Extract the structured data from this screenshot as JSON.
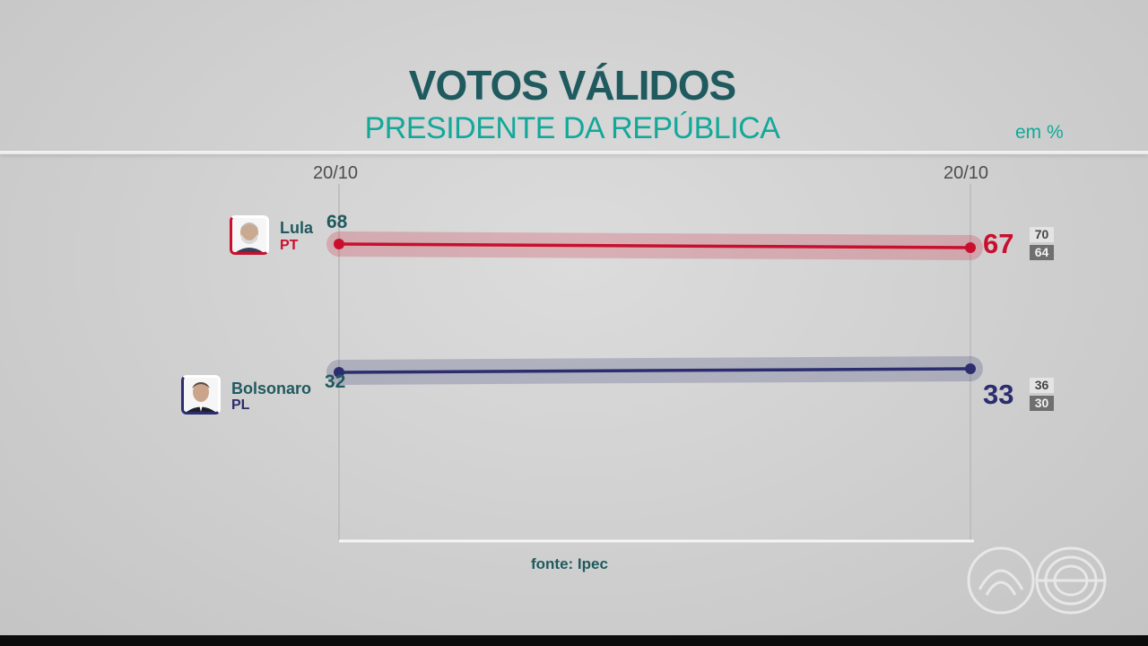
{
  "header": {
    "title": "VOTOS VÁLIDOS",
    "subtitle": "PRESIDENTE DA REPÚBLICA",
    "unit": "em %"
  },
  "footer": {
    "source": "fonte: Ipec"
  },
  "chart_data": {
    "type": "line",
    "x": [
      "20/10",
      "20/10"
    ],
    "series": [
      {
        "name": "Lula",
        "party": "PT",
        "values": [
          68,
          67
        ],
        "color": "#c8102e",
        "range_high": "70",
        "range_low": "64",
        "start_label": "68",
        "end_label": "67"
      },
      {
        "name": "Bolsonaro",
        "party": "PL",
        "values": [
          32,
          33
        ],
        "color": "#2b2d6e",
        "range_high": "36",
        "range_low": "30",
        "start_label": "32",
        "end_label": "33"
      }
    ]
  }
}
